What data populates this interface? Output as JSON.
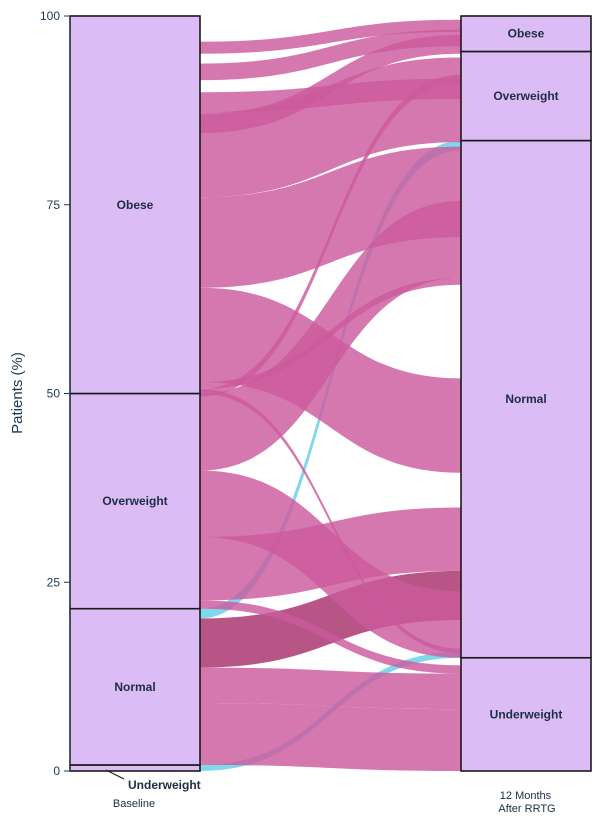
{
  "chart_data": {
    "type": "alluvial",
    "ylabel": "Patients (%)",
    "ylim": [
      0,
      100
    ],
    "yticks": [
      0,
      25,
      50,
      75,
      100
    ],
    "columns": [
      {
        "label": "Baseline",
        "nodes": [
          {
            "name": "Underweight",
            "from": 0,
            "to": 0.8
          },
          {
            "name": "Normal",
            "from": 0.8,
            "to": 21.5
          },
          {
            "name": "Overweight",
            "from": 21.5,
            "to": 50
          },
          {
            "name": "Obese",
            "from": 50,
            "to": 100
          }
        ]
      },
      {
        "label": "12 Months After RRTG",
        "label_lines": [
          "12 Months",
          "After RRTG"
        ],
        "nodes": [
          {
            "name": "Underweight",
            "from": 0,
            "to": 15
          },
          {
            "name": "Normal",
            "from": 15,
            "to": 83.5
          },
          {
            "name": "Overweight",
            "from": 83.5,
            "to": 95.3
          },
          {
            "name": "Obese",
            "from": 95.3,
            "to": 100
          }
        ]
      }
    ],
    "flows": [
      {
        "from": "Underweight",
        "to": "Normal",
        "value": 0.8,
        "y0": 0,
        "y1": 15
      },
      {
        "from": "Normal",
        "to": "Underweight",
        "value": 8.2,
        "y0": 0.8,
        "y1": 0
      },
      {
        "from": "Normal",
        "to": "Underweight",
        "value": 4.7,
        "y0": 9.0,
        "y1": 8.2
      },
      {
        "from": "Normal",
        "to": "Normal",
        "value": 6.5,
        "y0": 13.7,
        "y1": 20.0
      },
      {
        "from": "Normal",
        "to": "Overweight",
        "value": 1.3,
        "y0": 20.2,
        "y1": 82.2
      },
      {
        "from": "Overweight",
        "to": "Underweight",
        "value": 1.1,
        "y0": 21.5,
        "y1": 12.9
      },
      {
        "from": "Overweight",
        "to": "Normal",
        "value": 8.4,
        "y0": 22.6,
        "y1": 26.5
      },
      {
        "from": "Overweight",
        "to": "Normal",
        "value": 8.8,
        "y0": 31.0,
        "y1": 15.0
      },
      {
        "from": "Overweight",
        "to": "Normal",
        "value": 10.2,
        "y0": 39.8,
        "y1": 65.3
      },
      {
        "from": "Overweight",
        "to": "Overweight",
        "value": 1.0,
        "y0": 49.6,
        "y1": 91.2
      },
      {
        "from": "Obese",
        "to": "Underweight",
        "value": 0.6,
        "y0": 50.0,
        "y1": 15.6
      },
      {
        "from": "Obese",
        "to": "Normal",
        "value": 0.9,
        "y0": 50.6,
        "y1": 64.4
      },
      {
        "from": "Obese",
        "to": "Normal",
        "value": 12.5,
        "y0": 51.5,
        "y1": 39.5
      },
      {
        "from": "Obese",
        "to": "Normal",
        "value": 12.0,
        "y0": 64.0,
        "y1": 70.7
      },
      {
        "from": "Obese",
        "to": "Normal",
        "value": 11.2,
        "y0": 76.0,
        "y1": 83.3
      },
      {
        "from": "Obese",
        "to": "Overweight",
        "value": 2.5,
        "y0": 84.5,
        "y1": 95.0
      },
      {
        "from": "Obese",
        "to": "Overweight",
        "value": 2.7,
        "y0": 87.2,
        "y1": 89.0
      },
      {
        "from": "Obese",
        "to": "Obese",
        "value": 2.2,
        "y0": 91.5,
        "y1": 96.0
      },
      {
        "from": "Obese",
        "to": "Obese",
        "value": 1.6,
        "y0": 95.0,
        "y1": 97.9
      }
    ],
    "colors": {
      "node_fill": "#dcbcf5",
      "node_stroke": "#1a1a1a",
      "flow_down": "#cc5a9e",
      "flow_up": "#66cfe6",
      "flow_same_low": "#a8306c"
    },
    "grid": false
  }
}
